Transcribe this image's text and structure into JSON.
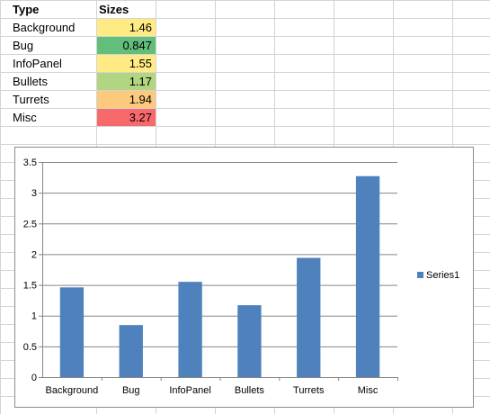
{
  "table": {
    "header_type": "Type",
    "header_sizes": "Sizes",
    "rows": [
      {
        "type": "Background",
        "size": "1.46",
        "color": "#FFEB84"
      },
      {
        "type": "Bug",
        "size": "0.847",
        "color": "#63BE7B"
      },
      {
        "type": "InfoPanel",
        "size": "1.55",
        "color": "#FFEA84"
      },
      {
        "type": "Bullets",
        "size": "1.17",
        "color": "#B1D580"
      },
      {
        "type": "Turrets",
        "size": "1.94",
        "color": "#FDC97D"
      },
      {
        "type": "Misc",
        "size": "3.27",
        "color": "#F8696B"
      }
    ]
  },
  "chart_data": {
    "type": "bar",
    "categories": [
      "Background",
      "Bug",
      "InfoPanel",
      "Bullets",
      "Turrets",
      "Misc"
    ],
    "series": [
      {
        "name": "Series1",
        "values": [
          1.46,
          0.847,
          1.55,
          1.17,
          1.94,
          3.27
        ],
        "color": "#4F81BD"
      }
    ],
    "title": "",
    "xlabel": "",
    "ylabel": "",
    "ylim": [
      0,
      3.5
    ],
    "yticks": [
      "0",
      "0.5",
      "1",
      "1.5",
      "2",
      "2.5",
      "3",
      "3.5"
    ],
    "grid": true,
    "legend": "right"
  }
}
